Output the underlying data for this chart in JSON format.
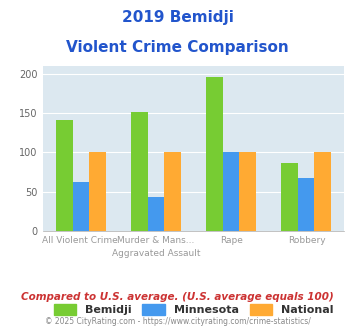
{
  "title_line1": "2019 Bemidji",
  "title_line2": "Violent Crime Comparison",
  "top_labels": [
    "",
    "Murder & Mans...",
    "",
    ""
  ],
  "bottom_labels": [
    "All Violent Crime",
    "Aggravated Assault",
    "Rape",
    "Robbery"
  ],
  "bemidji": [
    141,
    152,
    196,
    86
  ],
  "minnesota": [
    63,
    43,
    101,
    68
  ],
  "national": [
    100,
    100,
    100,
    100
  ],
  "bar_colors": {
    "bemidji": "#77cc33",
    "minnesota": "#4499ee",
    "national": "#ffaa33"
  },
  "ylim": [
    0,
    210
  ],
  "yticks": [
    0,
    50,
    100,
    150,
    200
  ],
  "legend_labels": [
    "Bemidji",
    "Minnesota",
    "National"
  ],
  "footnote1": "Compared to U.S. average. (U.S. average equals 100)",
  "footnote2": "© 2025 CityRating.com - https://www.cityrating.com/crime-statistics/",
  "title_color": "#2255cc",
  "footnote1_color": "#cc3333",
  "footnote2_color": "#888888",
  "plot_bg": "#dce8f0"
}
